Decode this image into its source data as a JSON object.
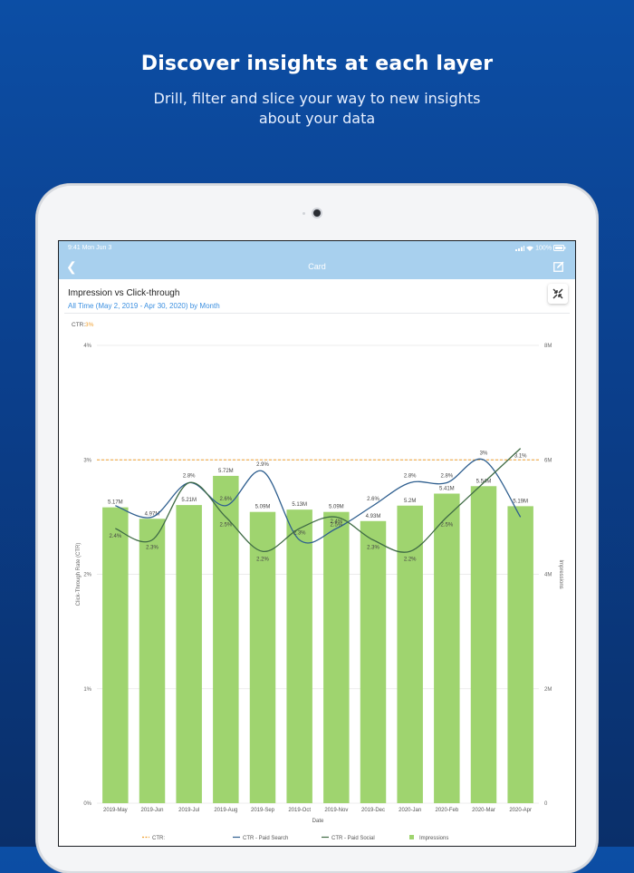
{
  "promo": {
    "headline": "Discover insights at each layer",
    "subline": "Drill, filter and slice your way to new insights about your data"
  },
  "status_bar": {
    "time": "9:41  Mon Jun 3",
    "battery": "100%"
  },
  "nav": {
    "title": "Card",
    "back_icon": "chevron-left-icon",
    "edit_icon": "edit-icon"
  },
  "card": {
    "title": "Impression vs Click-through",
    "subtitle": "All Time (May 2, 2019 - Apr 30, 2020) by Month",
    "expand_icon": "collapse-arrows-icon"
  },
  "chart_data": {
    "type": "bar",
    "title": "Impression vs Click-through",
    "xlabel": "Date",
    "ylabel_left": "Click-Through Rate (CTR)",
    "ylabel_right": "Impressions",
    "ctr_label_prefix": "CTR:",
    "ctr_label_value": "3%",
    "categories": [
      "2019-May",
      "2019-Jun",
      "2019-Jul",
      "2019-Aug",
      "2019-Sep",
      "2019-Oct",
      "2019-Nov",
      "2019-Dec",
      "2020-Jan",
      "2020-Feb",
      "2020-Mar",
      "2020-Apr"
    ],
    "left_ticks": [
      "0%",
      "1%",
      "2%",
      "3%",
      "4%"
    ],
    "right_ticks": [
      "0",
      "2M",
      "4M",
      "6M",
      "8M"
    ],
    "ylim_left": [
      0,
      4
    ],
    "ylim_right": [
      0,
      8
    ],
    "reference_line": {
      "name": "CTR:",
      "value": 3,
      "color": "#f0a030"
    },
    "series": [
      {
        "name": "Impressions",
        "kind": "bar",
        "color": "#9fd46f",
        "values": [
          5.17,
          4.97,
          5.21,
          5.72,
          5.09,
          5.13,
          5.09,
          4.93,
          5.2,
          5.41,
          5.54,
          5.19
        ],
        "labels": [
          "5.17M",
          "4.97M",
          "5.21M",
          "5.72M",
          "5.09M",
          "5.13M",
          "5.09M",
          "4.93M",
          "5.2M",
          "5.41M",
          "5.54M",
          "5.19M"
        ]
      },
      {
        "name": "CTR - Paid Search",
        "kind": "line",
        "color": "#2f5f8f",
        "values": [
          2.6,
          2.5,
          2.8,
          2.6,
          2.9,
          2.3,
          2.4,
          2.6,
          2.8,
          2.8,
          3.0,
          2.5
        ],
        "labels": [
          "",
          "",
          "2.8%",
          "2.6%",
          "2.9%",
          "2.3%",
          "2.4%",
          "2.6%",
          "2.8%",
          "2.8%",
          "3%",
          ""
        ]
      },
      {
        "name": "CTR - Paid Social",
        "kind": "line",
        "color": "#3f6b45",
        "values": [
          2.4,
          2.3,
          2.8,
          2.5,
          2.2,
          2.4,
          2.5,
          2.3,
          2.2,
          2.5,
          2.8,
          3.1
        ],
        "labels": [
          "2.4%",
          "2.3%",
          "",
          "2.5%",
          "2.2%",
          "",
          "2.5%",
          "2.3%",
          "2.2%",
          "2.5%",
          "",
          "3.1%"
        ]
      }
    ],
    "legend_position": "bottom",
    "grid": true
  }
}
